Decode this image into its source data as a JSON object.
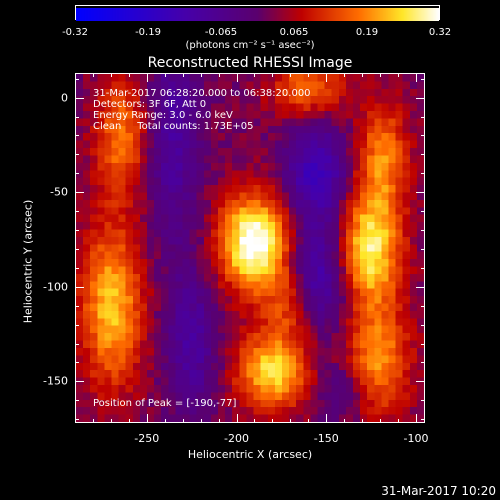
{
  "chart_data": {
    "type": "heatmap",
    "title": "Reconstructed RHESSI Image",
    "xlabel": "Heliocentric X (arcsec)",
    "ylabel": "Heliocentric Y (arcsec)",
    "xlim": [
      -290,
      -95
    ],
    "ylim": [
      -172,
      13
    ],
    "xticks": [
      -250,
      -200,
      -150,
      -100
    ],
    "yticks": [
      0,
      -50,
      -100,
      -150
    ],
    "colorbar": {
      "ticks": [
        "-0.32",
        "-0.19",
        "-0.065",
        "0.065",
        "0.19",
        "0.32"
      ],
      "units": "(photons cm⁻² s⁻¹ asec⁻²)",
      "colormap": "blue-purple-red-yellow-white"
    },
    "annotations": [
      "31-Mar-2017 06:28:20.000 to 06:38:20.000",
      "Detectors: 3F 6F, Att 0",
      "Energy Range: 3.0 - 6.0 keV",
      "Clean     Total counts: 1.73E+05"
    ],
    "peak_label": "Position of Peak = [-190,-77]",
    "peak": {
      "x": -190,
      "y": -77,
      "value": 0.32
    },
    "sources": [
      {
        "x": -190,
        "y": -77,
        "amp": 0.32,
        "sx": 14,
        "sy": 18
      },
      {
        "x": -125,
        "y": -80,
        "amp": 0.26,
        "sx": 12,
        "sy": 22
      },
      {
        "x": -118,
        "y": -30,
        "amp": 0.16,
        "sx": 10,
        "sy": 20
      },
      {
        "x": -120,
        "y": -140,
        "amp": 0.18,
        "sx": 12,
        "sy": 20
      },
      {
        "x": -270,
        "y": -110,
        "amp": 0.22,
        "sx": 12,
        "sy": 30
      },
      {
        "x": -265,
        "y": -20,
        "amp": 0.16,
        "sx": 10,
        "sy": 22
      },
      {
        "x": -180,
        "y": -145,
        "amp": 0.24,
        "sx": 14,
        "sy": 14
      },
      {
        "x": -160,
        "y": 5,
        "amp": 0.16,
        "sx": 14,
        "sy": 10
      },
      {
        "x": -170,
        "y": -110,
        "amp": 0.12,
        "sx": 10,
        "sy": 14
      },
      {
        "x": -235,
        "y": -20,
        "amp": -0.12,
        "sx": 10,
        "sy": 40
      },
      {
        "x": -225,
        "y": -130,
        "amp": -0.12,
        "sx": 10,
        "sy": 28
      },
      {
        "x": -155,
        "y": -40,
        "amp": -0.18,
        "sx": 12,
        "sy": 18
      },
      {
        "x": -155,
        "y": -95,
        "amp": -0.16,
        "sx": 12,
        "sy": 20
      },
      {
        "x": -140,
        "y": -155,
        "amp": -0.08,
        "sx": 10,
        "sy": 10
      }
    ],
    "background": 0.02,
    "cell_arcsec": 4
  },
  "footer": "31-Mar-2017 10:20"
}
